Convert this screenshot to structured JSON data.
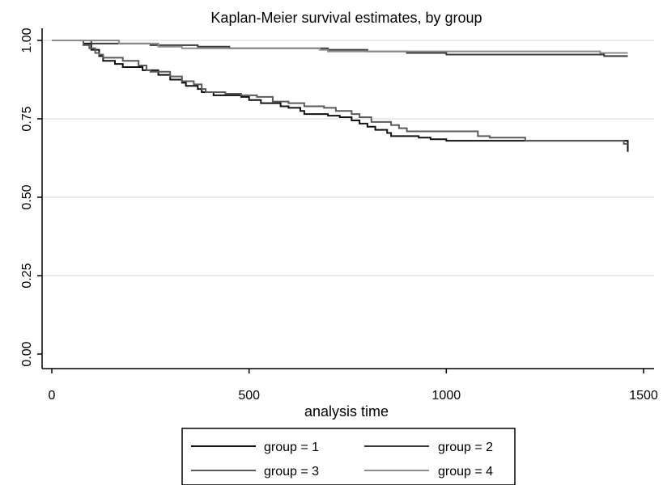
{
  "chart_data": {
    "type": "line",
    "title": "Kaplan-Meier survival estimates, by group",
    "xlabel": "analysis time",
    "ylabel": "",
    "xlim": [
      0,
      1500
    ],
    "ylim": [
      0,
      1
    ],
    "xticks": [
      0,
      500,
      1000,
      1500
    ],
    "xtick_labels": [
      "0",
      "500",
      "1000",
      "1500"
    ],
    "yticks": [
      0,
      0.25,
      0.5,
      0.75,
      1
    ],
    "ytick_labels": [
      "0.00",
      "0.25",
      "0.50",
      "0.75",
      "1.00"
    ],
    "grid": "horizontal",
    "legend_position": "bottom",
    "series": [
      {
        "name": "group = 1",
        "color": "#111111",
        "step": true,
        "points": [
          [
            0,
            1.0
          ],
          [
            80,
            0.99
          ],
          [
            100,
            0.97
          ],
          [
            120,
            0.95
          ],
          [
            130,
            0.935
          ],
          [
            160,
            0.925
          ],
          [
            180,
            0.915
          ],
          [
            230,
            0.905
          ],
          [
            270,
            0.89
          ],
          [
            300,
            0.875
          ],
          [
            330,
            0.865
          ],
          [
            340,
            0.855
          ],
          [
            370,
            0.845
          ],
          [
            380,
            0.835
          ],
          [
            410,
            0.825
          ],
          [
            480,
            0.82
          ],
          [
            500,
            0.81
          ],
          [
            530,
            0.8
          ],
          [
            580,
            0.79
          ],
          [
            600,
            0.785
          ],
          [
            630,
            0.775
          ],
          [
            640,
            0.765
          ],
          [
            700,
            0.76
          ],
          [
            730,
            0.755
          ],
          [
            760,
            0.745
          ],
          [
            780,
            0.735
          ],
          [
            800,
            0.725
          ],
          [
            820,
            0.715
          ],
          [
            850,
            0.705
          ],
          [
            860,
            0.695
          ],
          [
            930,
            0.69
          ],
          [
            960,
            0.685
          ],
          [
            1000,
            0.68
          ],
          [
            1460,
            0.68
          ],
          [
            1460,
            0.645
          ]
        ]
      },
      {
        "name": "group = 2",
        "color": "#3a3a3a",
        "step": true,
        "points": [
          [
            0,
            1.0
          ],
          [
            100,
            0.99
          ],
          [
            250,
            0.985
          ],
          [
            370,
            0.98
          ],
          [
            450,
            0.975
          ],
          [
            700,
            0.97
          ],
          [
            800,
            0.965
          ],
          [
            900,
            0.96
          ],
          [
            1000,
            0.955
          ],
          [
            1390,
            0.955
          ],
          [
            1400,
            0.95
          ],
          [
            1460,
            0.95
          ]
        ]
      },
      {
        "name": "group = 3",
        "color": "#5a5a5a",
        "step": true,
        "points": [
          [
            0,
            1.0
          ],
          [
            80,
            0.985
          ],
          [
            95,
            0.975
          ],
          [
            110,
            0.96
          ],
          [
            120,
            0.955
          ],
          [
            130,
            0.945
          ],
          [
            180,
            0.935
          ],
          [
            220,
            0.92
          ],
          [
            240,
            0.905
          ],
          [
            250,
            0.9
          ],
          [
            300,
            0.885
          ],
          [
            330,
            0.87
          ],
          [
            360,
            0.86
          ],
          [
            380,
            0.845
          ],
          [
            390,
            0.835
          ],
          [
            440,
            0.83
          ],
          [
            480,
            0.825
          ],
          [
            520,
            0.82
          ],
          [
            560,
            0.805
          ],
          [
            600,
            0.8
          ],
          [
            640,
            0.79
          ],
          [
            690,
            0.785
          ],
          [
            720,
            0.775
          ],
          [
            760,
            0.765
          ],
          [
            780,
            0.755
          ],
          [
            810,
            0.74
          ],
          [
            860,
            0.73
          ],
          [
            880,
            0.72
          ],
          [
            900,
            0.71
          ],
          [
            1080,
            0.695
          ],
          [
            1110,
            0.69
          ],
          [
            1200,
            0.68
          ],
          [
            1450,
            0.68
          ],
          [
            1450,
            0.67
          ],
          [
            1460,
            0.67
          ]
        ]
      },
      {
        "name": "group = 4",
        "color": "#8c8c8c",
        "step": true,
        "points": [
          [
            0,
            1.0
          ],
          [
            170,
            0.99
          ],
          [
            270,
            0.98
          ],
          [
            330,
            0.975
          ],
          [
            680,
            0.97
          ],
          [
            700,
            0.965
          ],
          [
            1390,
            0.96
          ],
          [
            1460,
            0.96
          ]
        ]
      }
    ]
  }
}
